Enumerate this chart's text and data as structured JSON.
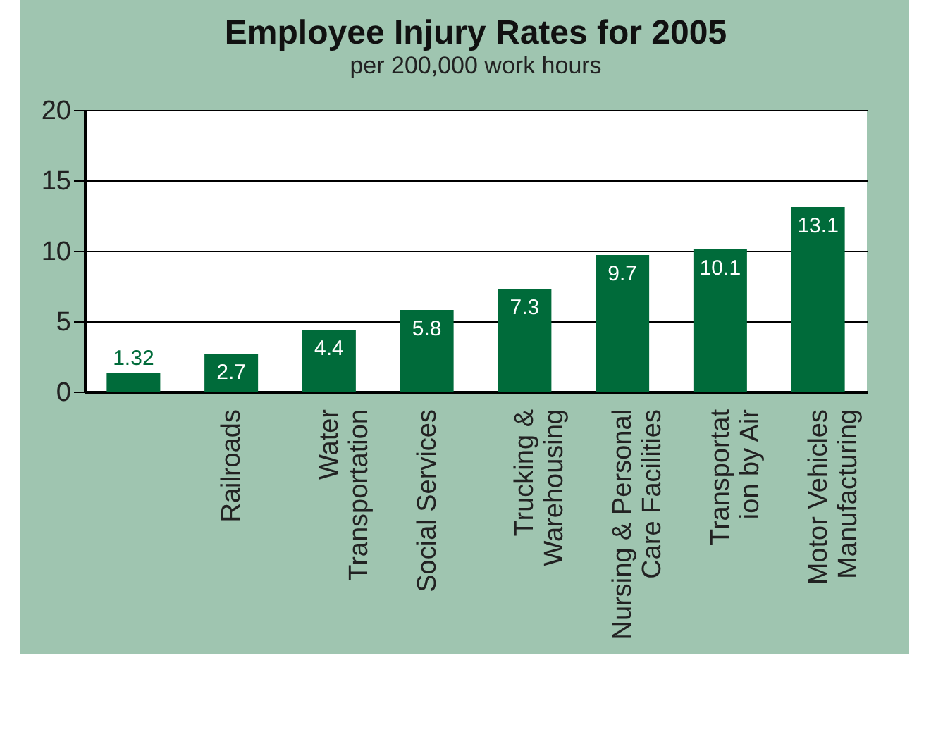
{
  "chart_data": {
    "type": "bar",
    "title": "Employee Injury Rates for 2005",
    "subtitle": "per 200,000 work hours",
    "categories": [
      null,
      "Railroads",
      "Water\nTransportation",
      "Social Services",
      "Trucking &\nWarehousing",
      "Nursing & Personal\nCare Facilities",
      "Transportat\nion by Air",
      "Motor Vehicles\nManufacturing"
    ],
    "values": [
      1.32,
      2.7,
      4.4,
      5.8,
      7.3,
      9.7,
      10.1,
      13.1
    ],
    "color": "#006b3a",
    "ylim": [
      0,
      20
    ],
    "yticks": [
      0,
      5,
      10,
      15,
      20
    ],
    "grid": "y",
    "data_labels": true
  }
}
